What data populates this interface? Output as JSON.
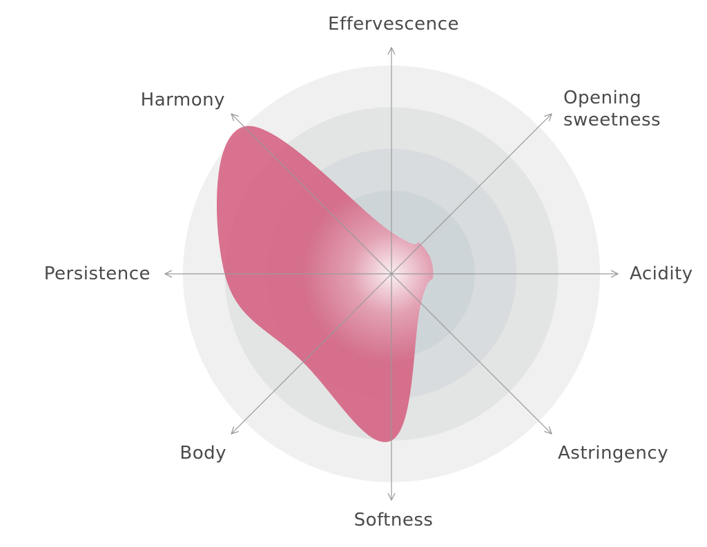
{
  "chart_data": {
    "type": "radar",
    "axes": [
      "Effervescence",
      "Opening sweetness",
      "Acidity",
      "Astringency",
      "Softness",
      "Body",
      "Persistence",
      "Harmony"
    ],
    "axis_labels": [
      [
        "Effervescence"
      ],
      [
        "Opening",
        "sweetness"
      ],
      [
        "Acidity"
      ],
      [
        "Astringency"
      ],
      [
        "Softness"
      ],
      [
        "Body"
      ],
      [
        "Persistence"
      ],
      [
        "Harmony"
      ]
    ],
    "range": [
      0,
      5
    ],
    "levels": 5,
    "values": [
      1,
      1,
      1,
      1,
      4,
      3,
      4,
      5
    ],
    "colors": {
      "fill": "#d35c7c",
      "rings": [
        "#f0f0f0",
        "#e3e4e4",
        "#d9dcde",
        "#ced5d8"
      ],
      "axis": "#9a9a9a"
    }
  }
}
